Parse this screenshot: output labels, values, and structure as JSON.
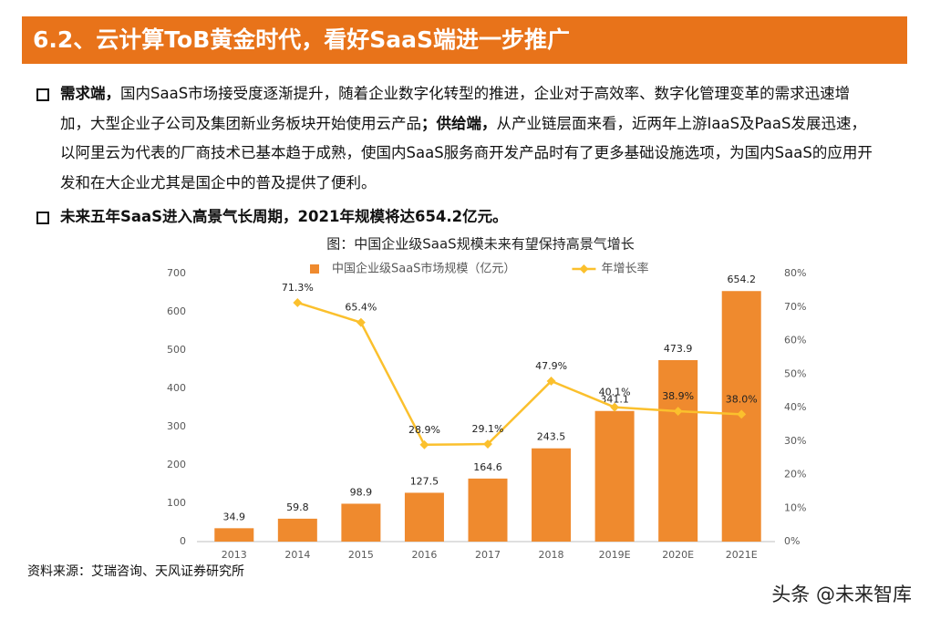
{
  "header": {
    "title": "6.2、云计算ToB黄金时代，看好SaaS端进一步推广"
  },
  "bullets": [
    {
      "segments": [
        {
          "text": "需求端，",
          "bold": true
        },
        {
          "text": "国内SaaS市场接受度逐渐提升，随着企业数字化转型的推进，企业对于高效率、数字化管理变革的需求迅速增加，大型企业子公司及集团新业务板块开始使用云产品",
          "bold": false
        },
        {
          "text": "；供给端，",
          "bold": true
        },
        {
          "text": "从产业链层面来看，近两年上游IaaS及PaaS发展迅速，以阿里云为代表的厂商技术已基本趋于成熟，使国内SaaS服务商开发产品时有了更多基础设施选项，为国内SaaS的应用开发和在大企业尤其是国企中的普及提供了便利。",
          "bold": false
        }
      ]
    },
    {
      "segments": [
        {
          "text": "未来五年SaaS进入高景气长周期，2021年规模将达654.2亿元。",
          "bold": true
        }
      ]
    }
  ],
  "chart_data": {
    "type": "bar-line",
    "title": "图：中国企业级SaaS规模未来有望保持高景气增长",
    "categories": [
      "2013",
      "2014",
      "2015",
      "2016",
      "2017",
      "2018",
      "2019E",
      "2020E",
      "2021E"
    ],
    "series": [
      {
        "name": "中国企业级SaaS市场规模（亿元）",
        "type": "bar",
        "color": "#ef8a2e",
        "values": [
          34.9,
          59.8,
          98.9,
          127.5,
          164.6,
          243.5,
          341.1,
          473.9,
          654.2
        ]
      },
      {
        "name": "年增长率",
        "type": "line",
        "axis": "y2",
        "color": "#fbc02d",
        "values": [
          null,
          71.3,
          65.4,
          28.9,
          29.1,
          47.9,
          40.1,
          38.9,
          38.0
        ],
        "value_labels": [
          null,
          "71.3%",
          "65.4%",
          "28.9%",
          "29.1%",
          "47.9%",
          "40.1%",
          "38.9%",
          "38.0%"
        ]
      }
    ],
    "ylim": [
      0,
      700
    ],
    "yticks": [
      0,
      100,
      200,
      300,
      400,
      500,
      600,
      700
    ],
    "y2lim": [
      0,
      80
    ],
    "y2ticks": [
      {
        "value": 0,
        "label": "0%"
      },
      {
        "value": 10,
        "label": "10%"
      },
      {
        "value": 20,
        "label": "20%"
      },
      {
        "value": 30,
        "label": "30%"
      },
      {
        "value": 40,
        "label": "40%"
      },
      {
        "value": 50,
        "label": "50%"
      },
      {
        "value": 60,
        "label": "60%"
      },
      {
        "value": 70,
        "label": "70%"
      },
      {
        "value": 80,
        "label": "80%"
      }
    ],
    "grid": false,
    "legend": "top"
  },
  "source": "资料来源：艾瑞咨询、天风证券研究所",
  "watermark": "头条 @未来智库"
}
